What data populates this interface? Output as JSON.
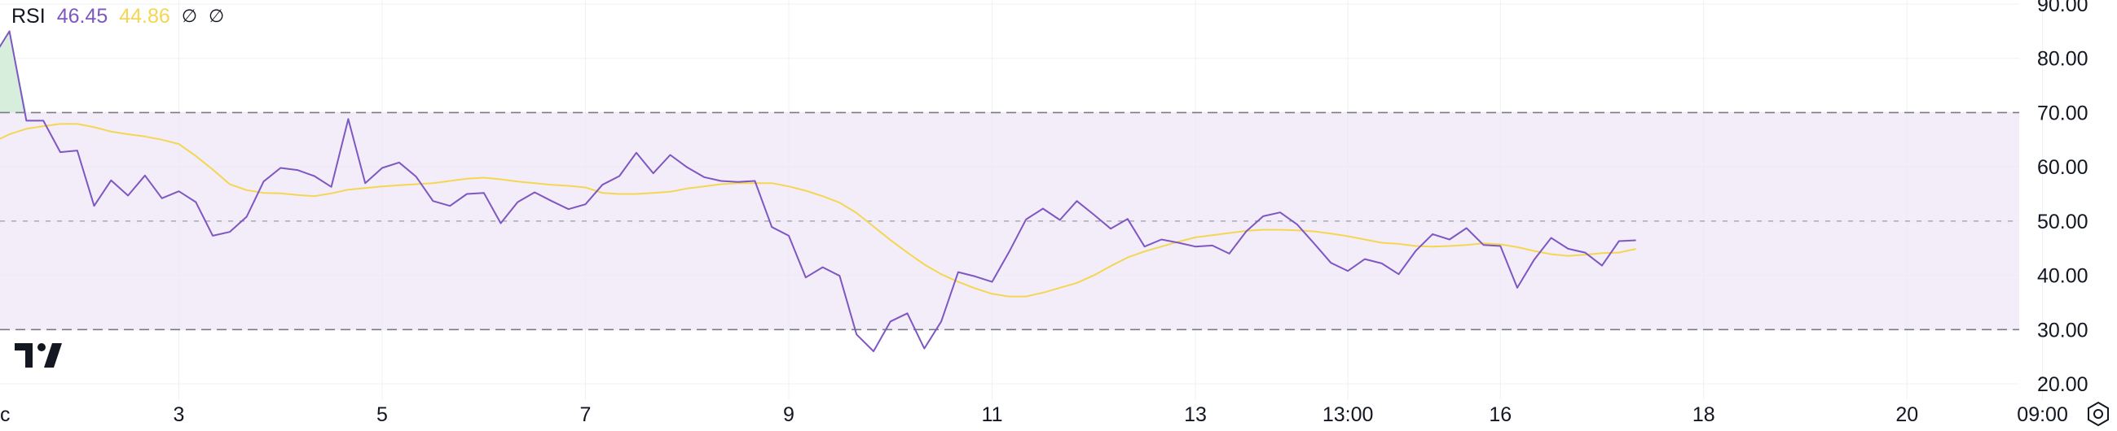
{
  "legend": {
    "indicator_name": "RSI",
    "rsi_value": "46.45",
    "ma_value": "44.86",
    "hidden_value_1": "∅",
    "hidden_value_2": "∅"
  },
  "colors": {
    "rsi_line": "#7e57c2",
    "ma_line": "#f5d652",
    "band_fill": "#ede7f6",
    "overbought_fill": "#d6eedb",
    "level_line": "#787b86",
    "grid": "#eef0f3",
    "text": "#131722"
  },
  "icons": {
    "logo": "tradingview-logo-icon",
    "settings": "settings-gear-icon"
  },
  "chart_data": {
    "type": "line",
    "title": "RSI",
    "ylim": [
      20,
      90
    ],
    "y_ticks": [
      "20.00",
      "30.00",
      "40.00",
      "50.00",
      "60.00",
      "70.00",
      "80.00",
      "90.00"
    ],
    "x_ticks": [
      {
        "label": "c",
        "index": 0
      },
      {
        "label": "3",
        "index": 12
      },
      {
        "label": "5",
        "index": 24
      },
      {
        "label": "7",
        "index": 36
      },
      {
        "label": "9",
        "index": 48
      },
      {
        "label": "11",
        "index": 60
      },
      {
        "label": "13",
        "index": 72
      },
      {
        "label": "13:00",
        "index": 81
      },
      {
        "label": "16",
        "index": 90
      },
      {
        "label": "18",
        "index": 102
      },
      {
        "label": "20",
        "index": 114
      },
      {
        "label": "09:00",
        "index": 122
      }
    ],
    "levels": {
      "upper": 70,
      "middle": 50,
      "lower": 30
    },
    "grid": true,
    "series": [
      {
        "name": "RSI",
        "values": [
          80,
          80,
          85,
          68.5,
          68.5,
          62.7,
          63,
          52.8,
          57.5,
          54.7,
          58.4,
          54.2,
          55.5,
          53.5,
          47.3,
          48,
          50.8,
          57.3,
          59.8,
          59.4,
          58.3,
          56.3,
          68.8,
          57,
          59.8,
          60.8,
          58.2,
          53.7,
          52.8,
          55,
          55.2,
          49.6,
          53.5,
          55.3,
          53.7,
          52.2,
          53.1,
          56.7,
          58.3,
          62.6,
          58.8,
          62.2,
          59.9,
          58.1,
          57.4,
          57.2,
          57.4,
          48.9,
          47.3,
          39.6,
          41.5,
          39.9,
          29.1,
          26,
          31.5,
          33,
          26.5,
          31.5,
          40.6,
          39.8,
          38.8,
          44.3,
          50.3,
          52.3,
          50.2,
          53.7,
          51.2,
          48.6,
          50.4,
          45.3,
          46.6,
          46,
          45.3,
          45.5,
          44,
          48.1,
          50.9,
          51.6,
          49.4,
          45.9,
          42.3,
          40.8,
          43,
          42.2,
          40.2,
          44.5,
          47.6,
          46.6,
          48.7,
          45.6,
          45.4,
          37.7,
          42.9,
          46.9,
          44.9,
          44.2,
          41.8,
          46.3,
          46.45
        ]
      },
      {
        "name": "RSI-based MA",
        "values": [
          62.8,
          64.5,
          66,
          67,
          67.5,
          67.9,
          67.9,
          67.3,
          66.5,
          66,
          65.6,
          65,
          64.2,
          62,
          59.5,
          56.8,
          55.7,
          55.2,
          55.1,
          54.8,
          54.6,
          55.1,
          55.8,
          56.1,
          56.4,
          56.6,
          56.8,
          57,
          57.4,
          57.8,
          58,
          57.7,
          57.3,
          57,
          56.7,
          56.5,
          56.2,
          55.2,
          55,
          55,
          55.2,
          55.4,
          56,
          56.4,
          56.8,
          57,
          57,
          57,
          56.4,
          55.6,
          54.6,
          53.4,
          51.5,
          49,
          46.5,
          44.2,
          42,
          40.2,
          38.8,
          37.6,
          36.6,
          36.1,
          36.1,
          36.8,
          37.7,
          38.6,
          40,
          41.7,
          43.3,
          44.4,
          45.3,
          46.2,
          47,
          47.4,
          47.8,
          48.2,
          48.4,
          48.4,
          48.3,
          48.1,
          47.7,
          47.2,
          46.6,
          46,
          45.8,
          45.4,
          45.3,
          45.4,
          45.6,
          45.9,
          45.7,
          45.2,
          44.5,
          43.9,
          43.6,
          43.8,
          44.1,
          44.2,
          44.86
        ]
      }
    ]
  }
}
